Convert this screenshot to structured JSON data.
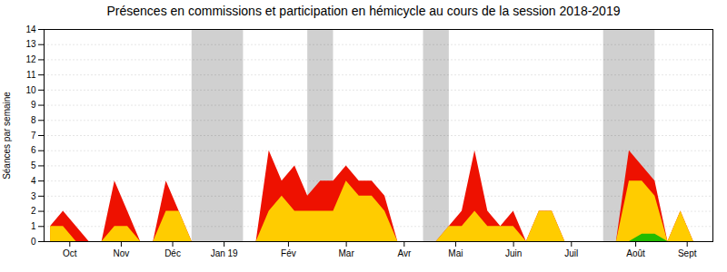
{
  "chart_data": {
    "type": "area",
    "title": "Présences en commissions et participation en hémicycle au cours de la session 2018-2019",
    "y_label": "Séances par semaine",
    "xlim": [
      -0.5,
      51.5
    ],
    "xticks": [
      {
        "value": 1.5,
        "label": "Oct"
      },
      {
        "value": 5.5,
        "label": "Nov"
      },
      {
        "value": 9.5,
        "label": "Déc"
      },
      {
        "value": 13.5,
        "label": "Jan 19"
      },
      {
        "value": 18.5,
        "label": "Fév"
      },
      {
        "value": 23,
        "label": "Mar"
      },
      {
        "value": 27.5,
        "label": "Avr"
      },
      {
        "value": 31.5,
        "label": "Mai"
      },
      {
        "value": 36,
        "label": "Juin"
      },
      {
        "value": 40.5,
        "label": "Juil"
      },
      {
        "value": 45.5,
        "label": "Août"
      },
      {
        "value": 49.5,
        "label": "Sept"
      }
    ],
    "ylim": [
      0,
      14
    ],
    "yticks": [
      0,
      1,
      2,
      3,
      4,
      5,
      6,
      7,
      8,
      9,
      10,
      11,
      12,
      13,
      14
    ],
    "grid": true,
    "bands": {
      "color": "#aaaaaa",
      "ranges": [
        [
          11,
          15
        ],
        [
          20,
          22
        ],
        [
          29,
          31
        ],
        [
          43,
          47
        ]
      ]
    },
    "series": [
      {
        "color": "#ee1100",
        "values": [
          1,
          2,
          1,
          0,
          0,
          4,
          2,
          0,
          0,
          4,
          2,
          0,
          0,
          0,
          0,
          0,
          0,
          6,
          4,
          5,
          3,
          4,
          4,
          5,
          4,
          4,
          3,
          0,
          0,
          0,
          0,
          1,
          2,
          6,
          2,
          1,
          2,
          0,
          2,
          2,
          0,
          0,
          0,
          0,
          0,
          6,
          5,
          4,
          0,
          2,
          0,
          0
        ]
      },
      {
        "color": "#ffcc00",
        "values": [
          1,
          1,
          0,
          0,
          0,
          1,
          1,
          0,
          0,
          2,
          2,
          0,
          0,
          0,
          0,
          0,
          0,
          2,
          3,
          2,
          2,
          2,
          2,
          4,
          3,
          3,
          2,
          0,
          0,
          0,
          0,
          1,
          1,
          2,
          1,
          1,
          1,
          0,
          2,
          2,
          0,
          0,
          0,
          0,
          0,
          4,
          4,
          3,
          0,
          2,
          0,
          0
        ]
      },
      {
        "color": "#22bb00",
        "values": [
          0,
          0,
          0,
          0,
          0,
          0,
          0,
          0,
          0,
          0,
          0,
          0,
          0,
          0,
          0,
          0,
          0,
          0,
          0,
          0,
          0,
          0,
          0,
          0,
          0,
          0,
          0,
          0,
          0,
          0,
          0,
          0,
          0,
          0,
          0,
          0,
          0,
          0,
          0,
          0,
          0,
          0,
          0,
          0,
          0,
          0,
          0.5,
          0.5,
          0,
          0,
          0,
          0
        ]
      }
    ]
  }
}
